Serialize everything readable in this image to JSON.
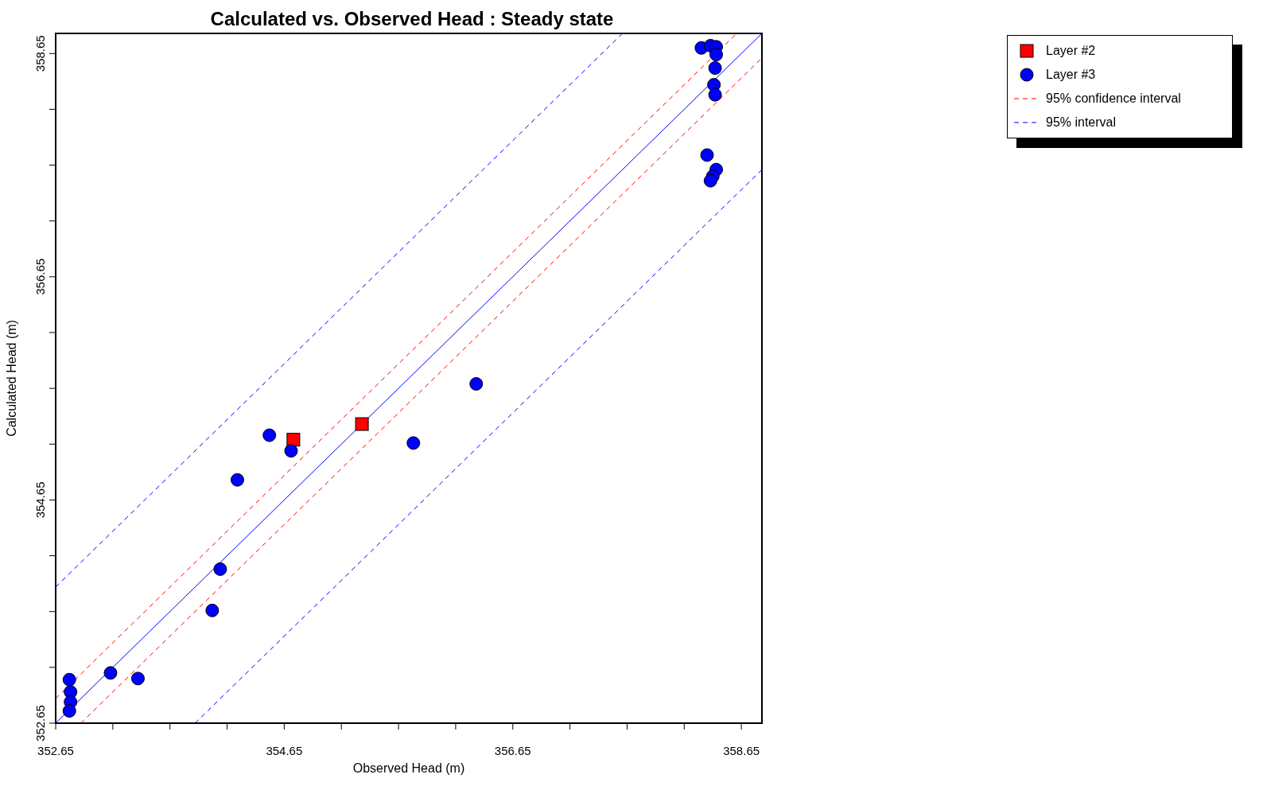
{
  "chart_data": {
    "type": "scatter",
    "title": "Calculated vs. Observed Head : Steady state",
    "xlabel": "Observed Head (m)",
    "ylabel": "Calculated Head (m)",
    "xlim": [
      352.65,
      358.83
    ],
    "ylim": [
      352.65,
      358.83
    ],
    "xticks": [
      352.65,
      {
        "value": 353.15,
        "label": null
      },
      {
        "value": 353.65,
        "label": null
      },
      {
        "value": 354.15,
        "label": null
      },
      354.65,
      {
        "value": 355.15,
        "label": null
      },
      {
        "value": 355.65,
        "label": null
      },
      {
        "value": 356.15,
        "label": null
      },
      356.65,
      {
        "value": 357.15,
        "label": null
      },
      {
        "value": 357.65,
        "label": null
      },
      {
        "value": 358.15,
        "label": null
      },
      358.65
    ],
    "yticks": [
      352.65,
      {
        "value": 353.15,
        "label": null
      },
      {
        "value": 353.65,
        "label": null
      },
      {
        "value": 354.15,
        "label": null
      },
      354.65,
      {
        "value": 355.15,
        "label": null
      },
      {
        "value": 355.65,
        "label": null
      },
      {
        "value": 356.15,
        "label": null
      },
      356.65,
      {
        "value": 357.15,
        "label": null
      },
      {
        "value": 357.65,
        "label": null
      },
      {
        "value": 358.15,
        "label": null
      },
      358.65
    ],
    "grid": false,
    "legend": "top right",
    "series": [
      {
        "name": "Layer #2",
        "color": "#ff0000",
        "marker": "square",
        "x": [
          354.73,
          355.33
        ],
        "values": [
          355.19,
          355.33
        ]
      },
      {
        "name": "Layer #3",
        "color": "#0000ff",
        "marker": "circle",
        "x": [
          352.77,
          352.78,
          352.78,
          352.77,
          353.13,
          353.37,
          354.02,
          354.09,
          354.24,
          354.52,
          354.71,
          355.78,
          356.33,
          358.3,
          358.38,
          358.43,
          358.43,
          358.42,
          358.41,
          358.42,
          358.35,
          358.43,
          358.4,
          358.38
        ],
        "values": [
          353.04,
          352.93,
          352.84,
          352.76,
          353.1,
          353.05,
          353.66,
          354.03,
          354.83,
          355.23,
          355.09,
          355.16,
          355.69,
          358.7,
          358.72,
          358.71,
          358.64,
          358.52,
          358.37,
          358.28,
          357.74,
          357.61,
          357.55,
          357.51
        ]
      },
      {
        "type": "line",
        "color": "#0000ff",
        "line_style": "solid",
        "marker": "none",
        "x": [
          352.65,
          358.83
        ],
        "values": [
          352.65,
          358.83
        ]
      },
      {
        "type": "line",
        "name": "95% confidence interval",
        "color": "#ff0000",
        "line_style": "dashed",
        "marker": "none",
        "x": [
          352.65,
          358.61
        ],
        "values": [
          352.87,
          358.83
        ]
      },
      {
        "type": "line",
        "color": "#ff0000",
        "line_style": "dashed",
        "marker": "none",
        "x": [
          352.87,
          358.83
        ],
        "values": [
          352.65,
          358.61
        ]
      },
      {
        "type": "line",
        "name": "95% interval",
        "color": "#0000ff",
        "line_style": "dashed",
        "marker": "none",
        "x": [
          352.65,
          357.61
        ],
        "values": [
          353.87,
          358.83
        ]
      },
      {
        "type": "line",
        "color": "#0000ff",
        "line_style": "dashed",
        "marker": "none",
        "x": [
          353.87,
          358.83
        ],
        "values": [
          352.65,
          357.61
        ]
      }
    ]
  }
}
